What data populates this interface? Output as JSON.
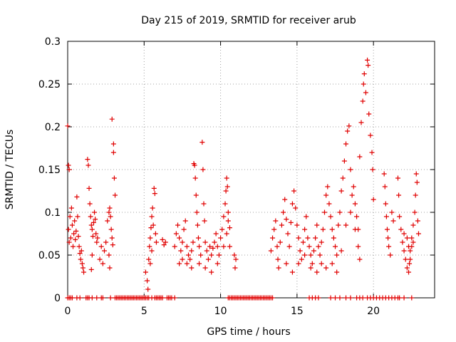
{
  "chart_data": {
    "type": "scatter",
    "title": "Day 215 of 2019, SRMTID for receiver arub",
    "xlabel": "GPS time / hours",
    "ylabel": "SRMTID / TECUs",
    "xlim": [
      0,
      24
    ],
    "ylim": [
      0,
      0.3
    ],
    "xticks": [
      0,
      5,
      10,
      15,
      20
    ],
    "xtick_labels": [
      "0",
      "5",
      "10",
      "15",
      "20"
    ],
    "yticks": [
      0,
      0.05,
      0.1,
      0.15,
      0.2,
      0.25,
      0.3
    ],
    "ytick_labels": [
      "0",
      "0.05",
      "0.1",
      "0.15",
      "0.2",
      "0.25",
      "0.3"
    ],
    "grid": true,
    "marker": "+",
    "color": "#e00000",
    "series": [
      {
        "name": "SRMTID",
        "points": [
          [
            0.0,
            0.201
          ],
          [
            0.05,
            0.155
          ],
          [
            0.1,
            0.15
          ],
          [
            0.05,
            0.08
          ],
          [
            0.1,
            0.065
          ],
          [
            0.15,
            0.095
          ],
          [
            0.2,
            0.07
          ],
          [
            0.25,
            0.105
          ],
          [
            0.3,
            0.085
          ],
          [
            0.35,
            0.06
          ],
          [
            0.4,
            0.075
          ],
          [
            0.45,
            0.09
          ],
          [
            0.5,
            0.068
          ],
          [
            0.55,
            0.078
          ],
          [
            0.6,
            0.118
          ],
          [
            0.65,
            0.095
          ],
          [
            0.7,
            0.072
          ],
          [
            0.75,
            0.06
          ],
          [
            0.8,
            0.052
          ],
          [
            0.85,
            0.045
          ],
          [
            0.9,
            0.055
          ],
          [
            0.95,
            0.04
          ],
          [
            1.0,
            0.035
          ],
          [
            1.05,
            0.03
          ],
          [
            1.3,
            0.162
          ],
          [
            1.35,
            0.155
          ],
          [
            1.4,
            0.128
          ],
          [
            1.45,
            0.11
          ],
          [
            1.5,
            0.095
          ],
          [
            1.55,
            0.085
          ],
          [
            1.6,
            0.08
          ],
          [
            1.65,
            0.072
          ],
          [
            1.7,
            0.088
          ],
          [
            1.75,
            0.1
          ],
          [
            1.8,
            0.092
          ],
          [
            1.85,
            0.075
          ],
          [
            1.9,
            0.065
          ],
          [
            1.6,
            0.05
          ],
          [
            1.55,
            0.033
          ],
          [
            1.95,
            0.07
          ],
          [
            2.1,
            0.045
          ],
          [
            2.2,
            0.06
          ],
          [
            2.3,
            0.04
          ],
          [
            2.4,
            0.055
          ],
          [
            2.5,
            0.065
          ],
          [
            2.6,
            0.09
          ],
          [
            2.7,
            0.1
          ],
          [
            2.75,
            0.105
          ],
          [
            2.8,
            0.095
          ],
          [
            2.85,
            0.08
          ],
          [
            2.9,
            0.07
          ],
          [
            2.95,
            0.062
          ],
          [
            2.9,
            0.209
          ],
          [
            3.0,
            0.18
          ],
          [
            3.0,
            0.17
          ],
          [
            3.05,
            0.14
          ],
          [
            3.1,
            0.12
          ],
          [
            2.7,
            0.05
          ],
          [
            2.75,
            0.035
          ],
          [
            5.1,
            0.03
          ],
          [
            5.2,
            0.02
          ],
          [
            5.25,
            0.01
          ],
          [
            5.3,
            0.045
          ],
          [
            5.35,
            0.06
          ],
          [
            5.4,
            0.07
          ],
          [
            5.45,
            0.082
          ],
          [
            5.5,
            0.095
          ],
          [
            5.55,
            0.105
          ],
          [
            5.6,
            0.085
          ],
          [
            5.65,
            0.128
          ],
          [
            5.7,
            0.122
          ],
          [
            5.75,
            0.075
          ],
          [
            5.8,
            0.065
          ],
          [
            5.4,
            0.04
          ],
          [
            5.5,
            0.055
          ],
          [
            6.2,
            0.068
          ],
          [
            6.3,
            0.062
          ],
          [
            6.4,
            0.065
          ],
          [
            7.0,
            0.06
          ],
          [
            7.1,
            0.075
          ],
          [
            7.2,
            0.085
          ],
          [
            7.3,
            0.07
          ],
          [
            7.4,
            0.055
          ],
          [
            7.5,
            0.065
          ],
          [
            7.6,
            0.08
          ],
          [
            7.7,
            0.09
          ],
          [
            7.8,
            0.06
          ],
          [
            7.9,
            0.05
          ],
          [
            8.0,
            0.045
          ],
          [
            8.1,
            0.055
          ],
          [
            8.2,
            0.065
          ],
          [
            8.25,
            0.157
          ],
          [
            8.3,
            0.155
          ],
          [
            8.35,
            0.14
          ],
          [
            8.4,
            0.12
          ],
          [
            8.45,
            0.1
          ],
          [
            8.5,
            0.085
          ],
          [
            8.55,
            0.07
          ],
          [
            8.6,
            0.06
          ],
          [
            8.7,
            0.05
          ],
          [
            8.8,
            0.182
          ],
          [
            8.85,
            0.15
          ],
          [
            8.9,
            0.11
          ],
          [
            8.95,
            0.09
          ],
          [
            9.0,
            0.065
          ],
          [
            9.1,
            0.055
          ],
          [
            9.2,
            0.045
          ],
          [
            9.3,
            0.06
          ],
          [
            9.4,
            0.05
          ],
          [
            9.5,
            0.058
          ],
          [
            9.6,
            0.065
          ],
          [
            9.7,
            0.075
          ],
          [
            9.8,
            0.06
          ],
          [
            9.9,
            0.05
          ],
          [
            10.0,
            0.07
          ],
          [
            10.1,
            0.08
          ],
          [
            10.2,
            0.095
          ],
          [
            10.3,
            0.11
          ],
          [
            10.35,
            0.125
          ],
          [
            10.4,
            0.14
          ],
          [
            10.45,
            0.13
          ],
          [
            10.5,
            0.1
          ],
          [
            10.5,
            0.09
          ],
          [
            10.6,
            0.082
          ],
          [
            7.3,
            0.04
          ],
          [
            7.5,
            0.045
          ],
          [
            7.8,
            0.04
          ],
          [
            8.1,
            0.035
          ],
          [
            8.6,
            0.04
          ],
          [
            9.0,
            0.035
          ],
          [
            9.4,
            0.03
          ],
          [
            9.8,
            0.04
          ],
          [
            10.2,
            0.06
          ],
          [
            10.4,
            0.075
          ],
          [
            10.6,
            0.06
          ],
          [
            10.9,
            0.05
          ],
          [
            10.95,
            0.035
          ],
          [
            11.0,
            0.045
          ],
          [
            13.3,
            0.055
          ],
          [
            13.4,
            0.07
          ],
          [
            13.5,
            0.08
          ],
          [
            13.6,
            0.09
          ],
          [
            13.7,
            0.06
          ],
          [
            13.75,
            0.045
          ],
          [
            13.8,
            0.035
          ],
          [
            13.9,
            0.065
          ],
          [
            14.0,
            0.085
          ],
          [
            14.1,
            0.1
          ],
          [
            14.2,
            0.115
          ],
          [
            14.3,
            0.092
          ],
          [
            14.4,
            0.075
          ],
          [
            14.5,
            0.06
          ],
          [
            14.6,
            0.088
          ],
          [
            14.7,
            0.11
          ],
          [
            14.8,
            0.125
          ],
          [
            14.9,
            0.105
          ],
          [
            15.0,
            0.085
          ],
          [
            15.1,
            0.07
          ],
          [
            15.2,
            0.055
          ],
          [
            15.3,
            0.045
          ],
          [
            15.4,
            0.065
          ],
          [
            15.5,
            0.08
          ],
          [
            15.6,
            0.095
          ],
          [
            15.7,
            0.07
          ],
          [
            15.8,
            0.06
          ],
          [
            15.9,
            0.05
          ],
          [
            16.0,
            0.04
          ],
          [
            16.1,
            0.055
          ],
          [
            16.2,
            0.07
          ],
          [
            16.3,
            0.085
          ],
          [
            16.4,
            0.06
          ],
          [
            16.5,
            0.05
          ],
          [
            16.6,
            0.065
          ],
          [
            16.7,
            0.08
          ],
          [
            16.8,
            0.1
          ],
          [
            16.9,
            0.12
          ],
          [
            17.0,
            0.13
          ],
          [
            17.1,
            0.11
          ],
          [
            17.2,
            0.095
          ],
          [
            17.3,
            0.08
          ],
          [
            17.4,
            0.07
          ],
          [
            17.5,
            0.06
          ],
          [
            17.6,
            0.05
          ],
          [
            17.7,
            0.085
          ],
          [
            17.8,
            0.1
          ],
          [
            17.9,
            0.125
          ],
          [
            18.0,
            0.14
          ],
          [
            18.1,
            0.16
          ],
          [
            18.2,
            0.18
          ],
          [
            18.3,
            0.195
          ],
          [
            18.4,
            0.201
          ],
          [
            18.5,
            0.15
          ],
          [
            18.6,
            0.12
          ],
          [
            18.7,
            0.13
          ],
          [
            18.8,
            0.11
          ],
          [
            18.9,
            0.095
          ],
          [
            19.0,
            0.08
          ],
          [
            19.1,
            0.165
          ],
          [
            19.2,
            0.205
          ],
          [
            19.3,
            0.23
          ],
          [
            19.35,
            0.25
          ],
          [
            19.4,
            0.262
          ],
          [
            19.5,
            0.24
          ],
          [
            19.6,
            0.278
          ],
          [
            19.65,
            0.272
          ],
          [
            19.7,
            0.215
          ],
          [
            19.8,
            0.19
          ],
          [
            19.9,
            0.17
          ],
          [
            19.95,
            0.15
          ],
          [
            20.0,
            0.115
          ],
          [
            19.0,
            0.06
          ],
          [
            19.1,
            0.045
          ],
          [
            18.8,
            0.08
          ],
          [
            18.5,
            0.1
          ],
          [
            18.2,
            0.085
          ],
          [
            17.9,
            0.055
          ],
          [
            17.6,
            0.03
          ],
          [
            17.3,
            0.04
          ],
          [
            16.9,
            0.035
          ],
          [
            16.6,
            0.04
          ],
          [
            16.3,
            0.03
          ],
          [
            15.9,
            0.035
          ],
          [
            15.5,
            0.05
          ],
          [
            15.1,
            0.04
          ],
          [
            14.7,
            0.03
          ],
          [
            14.3,
            0.04
          ],
          [
            20.7,
            0.145
          ],
          [
            20.75,
            0.13
          ],
          [
            20.8,
            0.11
          ],
          [
            20.85,
            0.095
          ],
          [
            20.9,
            0.08
          ],
          [
            20.95,
            0.07
          ],
          [
            21.0,
            0.06
          ],
          [
            21.1,
            0.05
          ],
          [
            21.2,
            0.1
          ],
          [
            21.3,
            0.09
          ],
          [
            21.6,
            0.14
          ],
          [
            21.65,
            0.12
          ],
          [
            21.7,
            0.095
          ],
          [
            21.8,
            0.08
          ],
          [
            21.9,
            0.065
          ],
          [
            22.0,
            0.055
          ],
          [
            22.1,
            0.045
          ],
          [
            22.2,
            0.035
          ],
          [
            22.3,
            0.03
          ],
          [
            22.35,
            0.04
          ],
          [
            22.4,
            0.055
          ],
          [
            22.5,
            0.07
          ],
          [
            22.6,
            0.085
          ],
          [
            22.7,
            0.1
          ],
          [
            22.75,
            0.12
          ],
          [
            22.8,
            0.145
          ],
          [
            22.85,
            0.135
          ],
          [
            22.9,
            0.09
          ],
          [
            22.95,
            0.075
          ],
          [
            22.6,
            0.065
          ],
          [
            22.5,
            0.06
          ],
          [
            22.4,
            0.045
          ],
          [
            22.3,
            0.06
          ],
          [
            22.2,
            0.07
          ],
          [
            22.0,
            0.075
          ]
        ],
        "zero_x": [
          0.0,
          0.1,
          0.2,
          0.3,
          0.6,
          0.8,
          1.2,
          1.3,
          1.4,
          1.6,
          1.9,
          2.2,
          2.3,
          2.8,
          3.1,
          3.2,
          3.3,
          3.4,
          3.5,
          3.6,
          3.7,
          3.8,
          3.9,
          4.0,
          4.1,
          4.2,
          4.3,
          4.4,
          4.5,
          4.6,
          4.7,
          4.8,
          4.9,
          5.0,
          5.1,
          5.2,
          5.3,
          5.5,
          5.7,
          5.8,
          5.9,
          6.0,
          6.1,
          6.2,
          6.5,
          6.6,
          6.7,
          6.8,
          7.0,
          10.5,
          10.6,
          10.7,
          10.8,
          10.9,
          11.0,
          11.1,
          11.2,
          11.3,
          11.4,
          11.5,
          11.6,
          11.7,
          11.8,
          11.9,
          12.0,
          12.1,
          12.2,
          12.3,
          12.4,
          12.5,
          12.6,
          12.7,
          12.8,
          12.9,
          13.0,
          13.1,
          13.2,
          13.3,
          13.4,
          15.8,
          16.0,
          16.2,
          16.4,
          17.2,
          17.5,
          17.8,
          18.2,
          18.5,
          18.9,
          19.1,
          19.3,
          19.6,
          19.8,
          20.0,
          20.2,
          20.4,
          20.6,
          20.8,
          21.0,
          21.2,
          21.4,
          21.6,
          21.7,
          22.0,
          22.5
        ]
      }
    ]
  }
}
